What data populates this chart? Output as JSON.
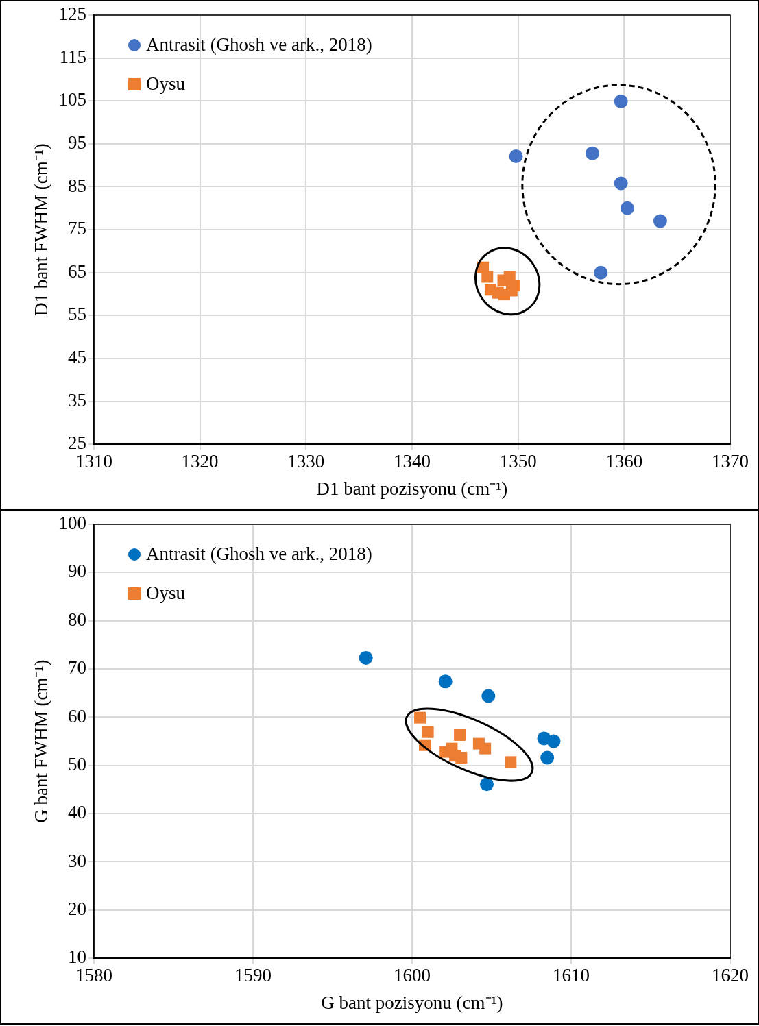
{
  "chart_data": [
    {
      "type": "scatter",
      "xlabel": "D1 bant pozisyonu (cm⁻¹)",
      "ylabel": "D1 bant FWHM (cm⁻¹)",
      "xlim": [
        1310,
        1370
      ],
      "xticks": [
        1310,
        1320,
        1330,
        1340,
        1350,
        1360,
        1370
      ],
      "ylim": [
        25,
        125
      ],
      "yticks": [
        25,
        35,
        45,
        55,
        65,
        75,
        85,
        95,
        105,
        115,
        125
      ],
      "grid": true,
      "legend": "top left",
      "series": [
        {
          "name": "Antrasit (Ghosh ve ark., 2018)",
          "color": "#4472c4",
          "marker": "circle",
          "x": [
            1349.8,
            1357.0,
            1359.7,
            1359.7,
            1360.3,
            1363.4,
            1357.8
          ],
          "values": [
            92.1,
            92.8,
            104.9,
            85.8,
            80.0,
            77.0,
            65.0
          ]
        },
        {
          "name": "Oysu",
          "color": "#ed7d31",
          "marker": "square",
          "x": [
            1346.7,
            1347.1,
            1347.4,
            1348.1,
            1348.6,
            1349.2,
            1349.6,
            1349.4,
            1348.7
          ],
          "values": [
            66.2,
            64.0,
            61.0,
            60.3,
            63.2,
            64.0,
            62.0,
            60.8,
            59.9
          ]
        }
      ]
    },
    {
      "type": "scatter",
      "xlabel": "G bant pozisyonu (cm⁻¹)",
      "ylabel": "G bant FWHM (cm⁻¹)",
      "xlim": [
        1580,
        1620
      ],
      "xticks": [
        1580,
        1590,
        1600,
        1610,
        1620
      ],
      "ylim": [
        10,
        100
      ],
      "yticks": [
        10,
        20,
        30,
        40,
        50,
        60,
        70,
        80,
        90,
        100
      ],
      "grid": true,
      "legend": "top left",
      "series": [
        {
          "name": "Antrasit (Ghosh ve ark., 2018)",
          "color": "#0070c0",
          "marker": "circle",
          "x": [
            1597.1,
            1602.1,
            1604.8,
            1608.3,
            1608.9,
            1608.5,
            1604.7
          ],
          "values": [
            72.3,
            67.4,
            64.4,
            55.6,
            55.0,
            51.6,
            46.1
          ]
        },
        {
          "name": "Oysu",
          "color": "#ed7d31",
          "marker": "square",
          "x": [
            1600.5,
            1601.0,
            1600.8,
            1602.1,
            1602.5,
            1603.0,
            1603.1,
            1602.7,
            1604.2,
            1604.6,
            1606.2
          ],
          "values": [
            59.9,
            56.9,
            54.2,
            52.8,
            53.5,
            56.3,
            51.6,
            52.0,
            54.5,
            53.5,
            50.7
          ]
        }
      ]
    }
  ]
}
